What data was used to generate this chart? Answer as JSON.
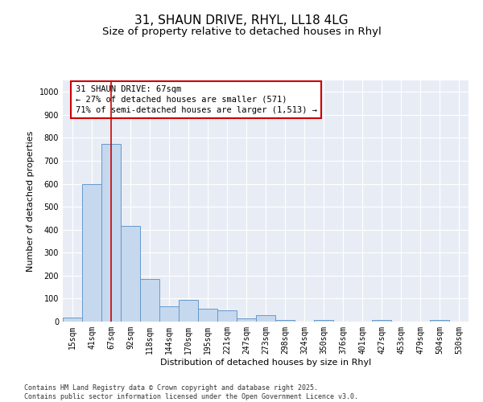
{
  "title1": "31, SHAUN DRIVE, RHYL, LL18 4LG",
  "title2": "Size of property relative to detached houses in Rhyl",
  "xlabel": "Distribution of detached houses by size in Rhyl",
  "ylabel": "Number of detached properties",
  "categories": [
    "15sqm",
    "41sqm",
    "67sqm",
    "92sqm",
    "118sqm",
    "144sqm",
    "170sqm",
    "195sqm",
    "221sqm",
    "247sqm",
    "273sqm",
    "298sqm",
    "324sqm",
    "350sqm",
    "376sqm",
    "401sqm",
    "427sqm",
    "453sqm",
    "479sqm",
    "504sqm",
    "530sqm"
  ],
  "values": [
    18,
    600,
    775,
    415,
    185,
    65,
    95,
    55,
    50,
    15,
    28,
    7,
    0,
    7,
    0,
    0,
    7,
    0,
    0,
    7,
    0
  ],
  "bar_color": "#c5d8ee",
  "bar_edge_color": "#6699cc",
  "bg_color": "#e8edf5",
  "vline_x_index": 2,
  "vline_color": "#cc0000",
  "annotation_text": "31 SHAUN DRIVE: 67sqm\n← 27% of detached houses are smaller (571)\n71% of semi-detached houses are larger (1,513) →",
  "annotation_box_color": "#cc0000",
  "ylim": [
    0,
    1050
  ],
  "yticks": [
    0,
    100,
    200,
    300,
    400,
    500,
    600,
    700,
    800,
    900,
    1000
  ],
  "footer1": "Contains HM Land Registry data © Crown copyright and database right 2025.",
  "footer2": "Contains public sector information licensed under the Open Government Licence v3.0.",
  "title_fontsize": 11,
  "subtitle_fontsize": 9.5,
  "axis_label_fontsize": 8,
  "tick_fontsize": 7,
  "annotation_fontsize": 7.5,
  "footer_fontsize": 6
}
